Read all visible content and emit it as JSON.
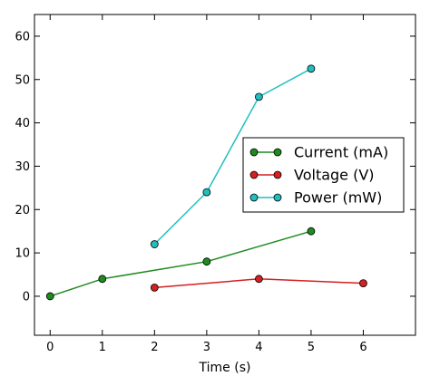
{
  "chart_data": {
    "type": "line",
    "xlabel": "Time (s)",
    "ylabel": "",
    "title": "",
    "xlim": [
      -0.3,
      7
    ],
    "ylim": [
      -9,
      65
    ],
    "xticks": [
      0,
      1,
      2,
      3,
      4,
      5,
      6
    ],
    "yticks": [
      0,
      10,
      20,
      30,
      40,
      50,
      60
    ],
    "grid": false,
    "legend_position": "right",
    "series": [
      {
        "name": "Current (mA)",
        "color": "#1f8a1f",
        "x": [
          0,
          1,
          3,
          5
        ],
        "y": [
          0,
          4,
          8,
          15
        ]
      },
      {
        "name": "Voltage (V)",
        "color": "#d42020",
        "x": [
          2,
          4,
          6
        ],
        "y": [
          2,
          4,
          3
        ]
      },
      {
        "name": "Power (mW)",
        "color": "#1fbfbf",
        "x": [
          2,
          3,
          4,
          5
        ],
        "y": [
          12,
          24,
          46,
          52.5
        ]
      }
    ]
  }
}
